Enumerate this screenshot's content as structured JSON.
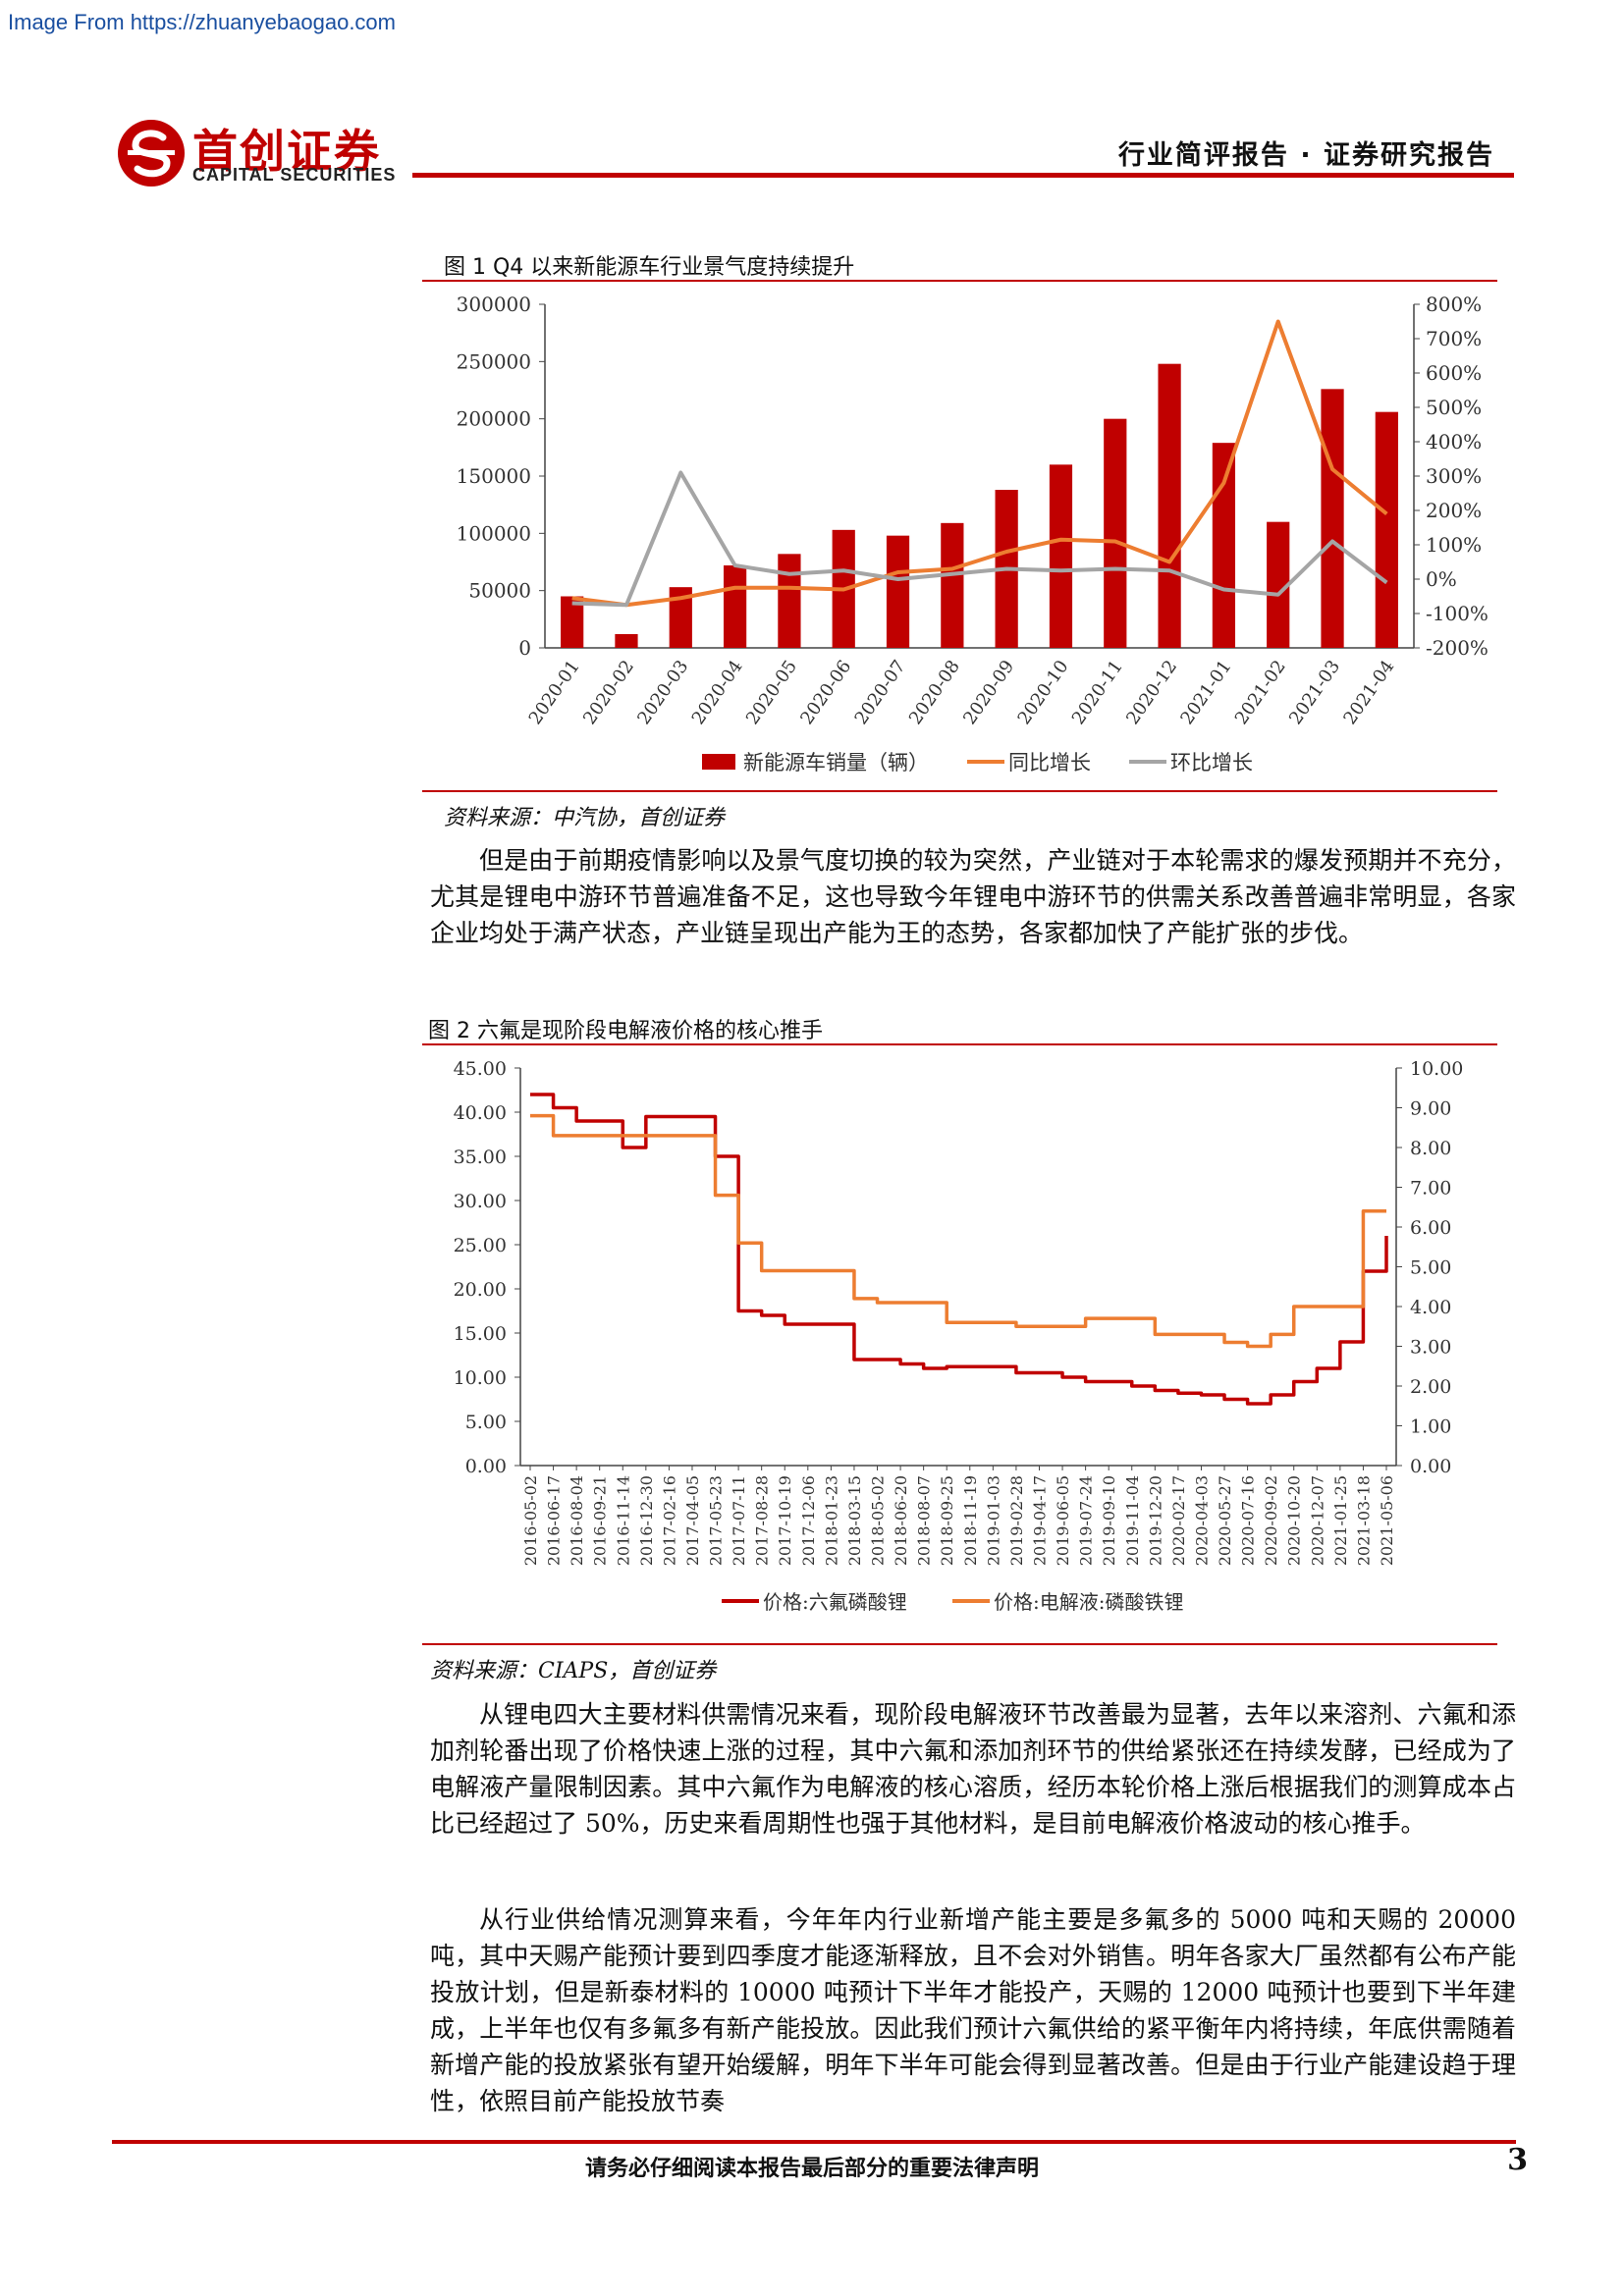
{
  "watermark": "Image From https://zhuanyebaogao.com",
  "header": {
    "logo_cn": "首创证券",
    "logo_en": "CAPITAL SECURITIES",
    "report_type": "行业简评报告 · 证券研究报告",
    "brand_color": "#c00000"
  },
  "figure1": {
    "title": "图 1 Q4 以来新能源车行业景气度持续提升",
    "source": "资料来源：中汽协，首创证券",
    "chart_data": {
      "type": "bar",
      "categories": [
        "2020-01",
        "2020-02",
        "2020-03",
        "2020-04",
        "2020-05",
        "2020-06",
        "2020-07",
        "2020-08",
        "2020-09",
        "2020-10",
        "2020-11",
        "2020-12",
        "2021-01",
        "2021-02",
        "2021-03",
        "2021-04"
      ],
      "yticks_left": [
        "300000",
        "250000",
        "200000",
        "150000",
        "100000",
        "50000",
        "0"
      ],
      "yticks_right": [
        "800%",
        "700%",
        "600%",
        "500%",
        "400%",
        "300%",
        "200%",
        "100%",
        "0%",
        "-100%",
        "-200%"
      ],
      "ylim_left": [
        0,
        300000
      ],
      "ylim_right": [
        -200,
        800
      ],
      "grid": false,
      "legend_position": "bottom",
      "series": [
        {
          "name": "新能源车销量（辆）",
          "kind": "bar",
          "axis": "left",
          "color": "#c00000",
          "values": [
            45000,
            12000,
            53000,
            72000,
            82000,
            103000,
            98000,
            109000,
            138000,
            160000,
            200000,
            248000,
            179000,
            110000,
            226000,
            206000
          ]
        },
        {
          "name": "同比增长",
          "kind": "line",
          "axis": "right",
          "color": "#ed7d31",
          "values": [
            -55,
            -75,
            -55,
            -25,
            -25,
            -30,
            20,
            30,
            80,
            115,
            110,
            50,
            280,
            750,
            320,
            190
          ]
        },
        {
          "name": "环比增长",
          "kind": "line",
          "axis": "right",
          "color": "#a5a5a5",
          "values": [
            -70,
            -75,
            310,
            40,
            15,
            25,
            0,
            15,
            30,
            25,
            30,
            25,
            -30,
            -45,
            110,
            -10
          ]
        }
      ]
    }
  },
  "paragraph1": "但是由于前期疫情影响以及景气度切换的较为突然，产业链对于本轮需求的爆发预期并不充分，尤其是锂电中游环节普遍准备不足，这也导致今年锂电中游环节的供需关系改善普遍非常明显，各家企业均处于满产状态，产业链呈现出产能为王的态势，各家都加快了产能扩张的步伐。",
  "figure2": {
    "title": "图 2 六氟是现阶段电解液价格的核心推手",
    "source": "资料来源：CIAPS，首创证券",
    "chart_data": {
      "type": "line",
      "x_ticks": [
        "2016-05-02",
        "2016-06-17",
        "2016-08-04",
        "2016-09-21",
        "2016-11-14",
        "2016-12-30",
        "2017-02-16",
        "2017-04-05",
        "2017-05-23",
        "2017-07-11",
        "2017-08-28",
        "2017-10-19",
        "2017-12-06",
        "2018-01-23",
        "2018-03-15",
        "2018-05-02",
        "2018-06-20",
        "2018-08-07",
        "2018-09-25",
        "2018-11-19",
        "2019-01-03",
        "2019-02-28",
        "2019-04-17",
        "2019-06-05",
        "2019-07-24",
        "2019-09-10",
        "2019-11-04",
        "2019-12-20",
        "2020-02-17",
        "2020-04-03",
        "2020-05-27",
        "2020-07-16",
        "2020-09-02",
        "2020-10-20",
        "2020-12-07",
        "2021-01-25",
        "2021-03-18",
        "2021-05-06"
      ],
      "yticks_left": [
        "45.00",
        "40.00",
        "35.00",
        "30.00",
        "25.00",
        "20.00",
        "15.00",
        "10.00",
        "5.00",
        "0.00"
      ],
      "yticks_right": [
        "10.00",
        "9.00",
        "8.00",
        "7.00",
        "6.00",
        "5.00",
        "4.00",
        "3.00",
        "2.00",
        "1.00",
        "0.00"
      ],
      "ylim_left": [
        0,
        45
      ],
      "ylim_right": [
        0,
        10
      ],
      "grid": false,
      "legend_position": "bottom",
      "series": [
        {
          "name": "价格:六氟磷酸锂",
          "axis": "left",
          "color": "#c00000",
          "values": [
            42,
            40.5,
            39,
            39,
            36,
            39.5,
            39.5,
            39.5,
            35,
            17.5,
            17,
            16,
            16,
            16,
            12,
            12,
            11.5,
            11,
            11.2,
            11.2,
            11.2,
            10.5,
            10.5,
            10,
            9.5,
            9.5,
            9,
            8.5,
            8.2,
            8,
            7.5,
            7,
            8,
            9.5,
            11,
            14,
            22,
            26
          ]
        },
        {
          "name": "价格:电解液:磷酸铁锂",
          "axis": "right",
          "color": "#ed7d31",
          "values": [
            8.8,
            8.3,
            8.3,
            8.3,
            8.3,
            8.3,
            8.3,
            8.3,
            6.8,
            5.6,
            4.9,
            4.9,
            4.9,
            4.9,
            4.2,
            4.1,
            4.1,
            4.1,
            3.6,
            3.6,
            3.6,
            3.5,
            3.5,
            3.5,
            3.7,
            3.7,
            3.7,
            3.3,
            3.3,
            3.3,
            3.1,
            3.0,
            3.3,
            4.0,
            4.0,
            4.0,
            6.4,
            6.4
          ]
        }
      ]
    }
  },
  "paragraph2": "从锂电四大主要材料供需情况来看，现阶段电解液环节改善最为显著，去年以来溶剂、六氟和添加剂轮番出现了价格快速上涨的过程，其中六氟和添加剂环节的供给紧张还在持续发酵，已经成为了电解液产量限制因素。其中六氟作为电解液的核心溶质，经历本轮价格上涨后根据我们的测算成本占比已经超过了 50%，历史来看周期性也强于其他材料，是目前电解液价格波动的核心推手。",
  "paragraph3": "从行业供给情况测算来看，今年年内行业新增产能主要是多氟多的 5000 吨和天赐的 20000 吨，其中天赐产能预计要到四季度才能逐渐释放，且不会对外销售。明年各家大厂虽然都有公布产能投放计划，但是新泰材料的 10000 吨预计下半年才能投产，天赐的 12000 吨预计也要到下半年建成，上半年也仅有多氟多有新产能投放。因此我们预计六氟供给的紧平衡年内将持续，年底供需随着新增产能的投放紧张有望开始缓解，明年下半年可能会得到显著改善。但是由于行业产能建设趋于理性，依照目前产能投放节奏",
  "footer": {
    "disclaimer": "请务必仔细阅读本报告最后部分的重要法律声明",
    "page_number": "3"
  }
}
